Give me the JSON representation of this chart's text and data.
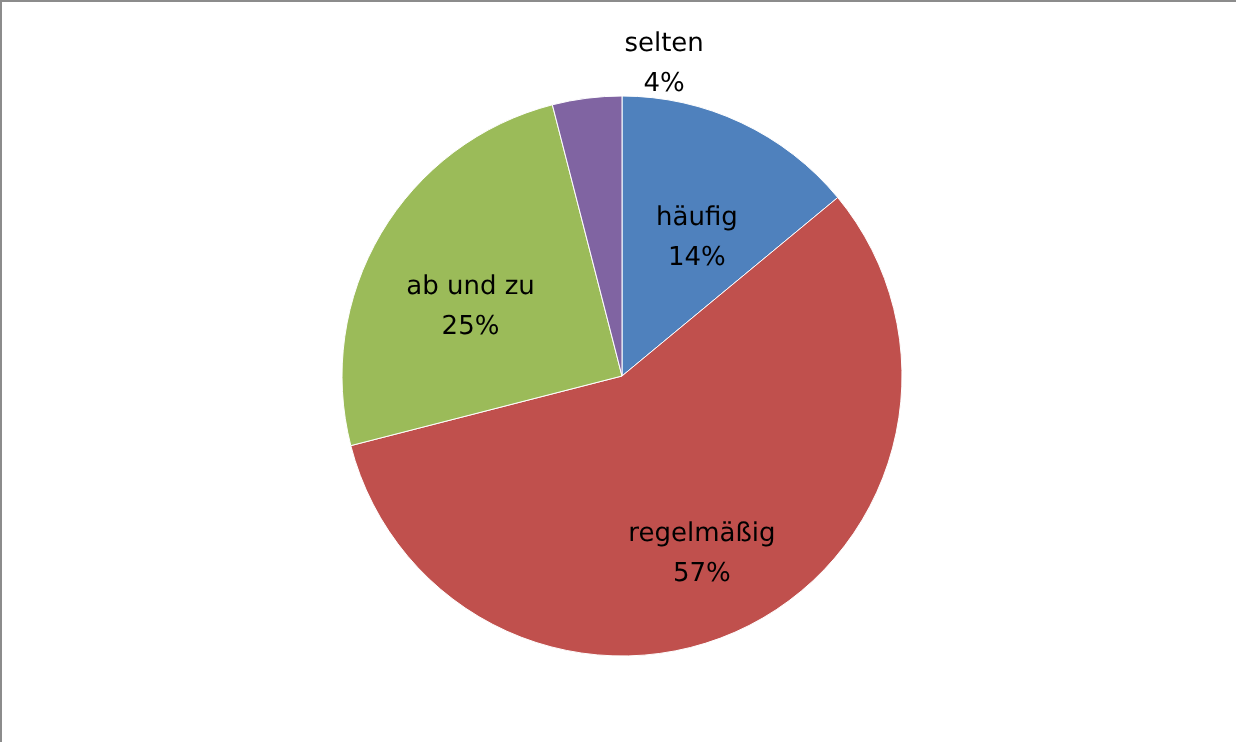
{
  "chart_data": {
    "type": "pie",
    "categories": [
      "häufig",
      "regelmäßig",
      "ab und zu",
      "selten"
    ],
    "values": [
      14,
      57,
      25,
      4
    ],
    "colors": [
      "#4f81bd",
      "#c0504d",
      "#9bbb59",
      "#8064a2"
    ],
    "value_labels": [
      "14%",
      "57%",
      "25%",
      "4%"
    ]
  }
}
